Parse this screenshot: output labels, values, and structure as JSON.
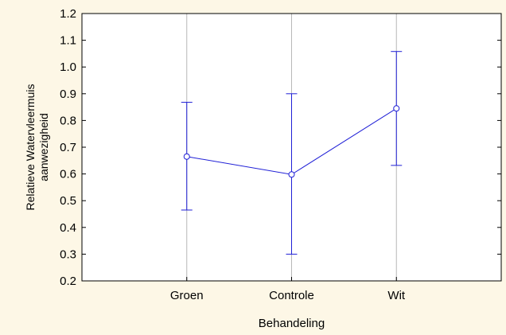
{
  "colors": {
    "background": "#fdf7e6",
    "plot_area": "#ffffff",
    "series": "#1f1fd6",
    "grid": "#b8b8b8",
    "axis": "#000000"
  },
  "chart_data": {
    "type": "line",
    "title": "",
    "xlabel": "Behandeling",
    "ylabel_lines": [
      "Relatieve Watervleermuis",
      "aanwezigheid"
    ],
    "categories": [
      "Groen",
      "Controle",
      "Wit"
    ],
    "series": [
      {
        "values": [
          0.665,
          0.598,
          0.845
        ],
        "error_low": [
          0.465,
          0.3,
          0.632
        ],
        "error_high": [
          0.868,
          0.9,
          1.058
        ],
        "marker": "open-circle"
      }
    ],
    "ylim": [
      0.2,
      1.2
    ],
    "yticks": [
      "0.2",
      "0.3",
      "0.4",
      "0.5",
      "0.6",
      "0.7",
      "0.8",
      "0.9",
      "1.0",
      "1.1",
      "1.2"
    ],
    "xgrid": true,
    "ygrid": false,
    "legend": "none"
  }
}
